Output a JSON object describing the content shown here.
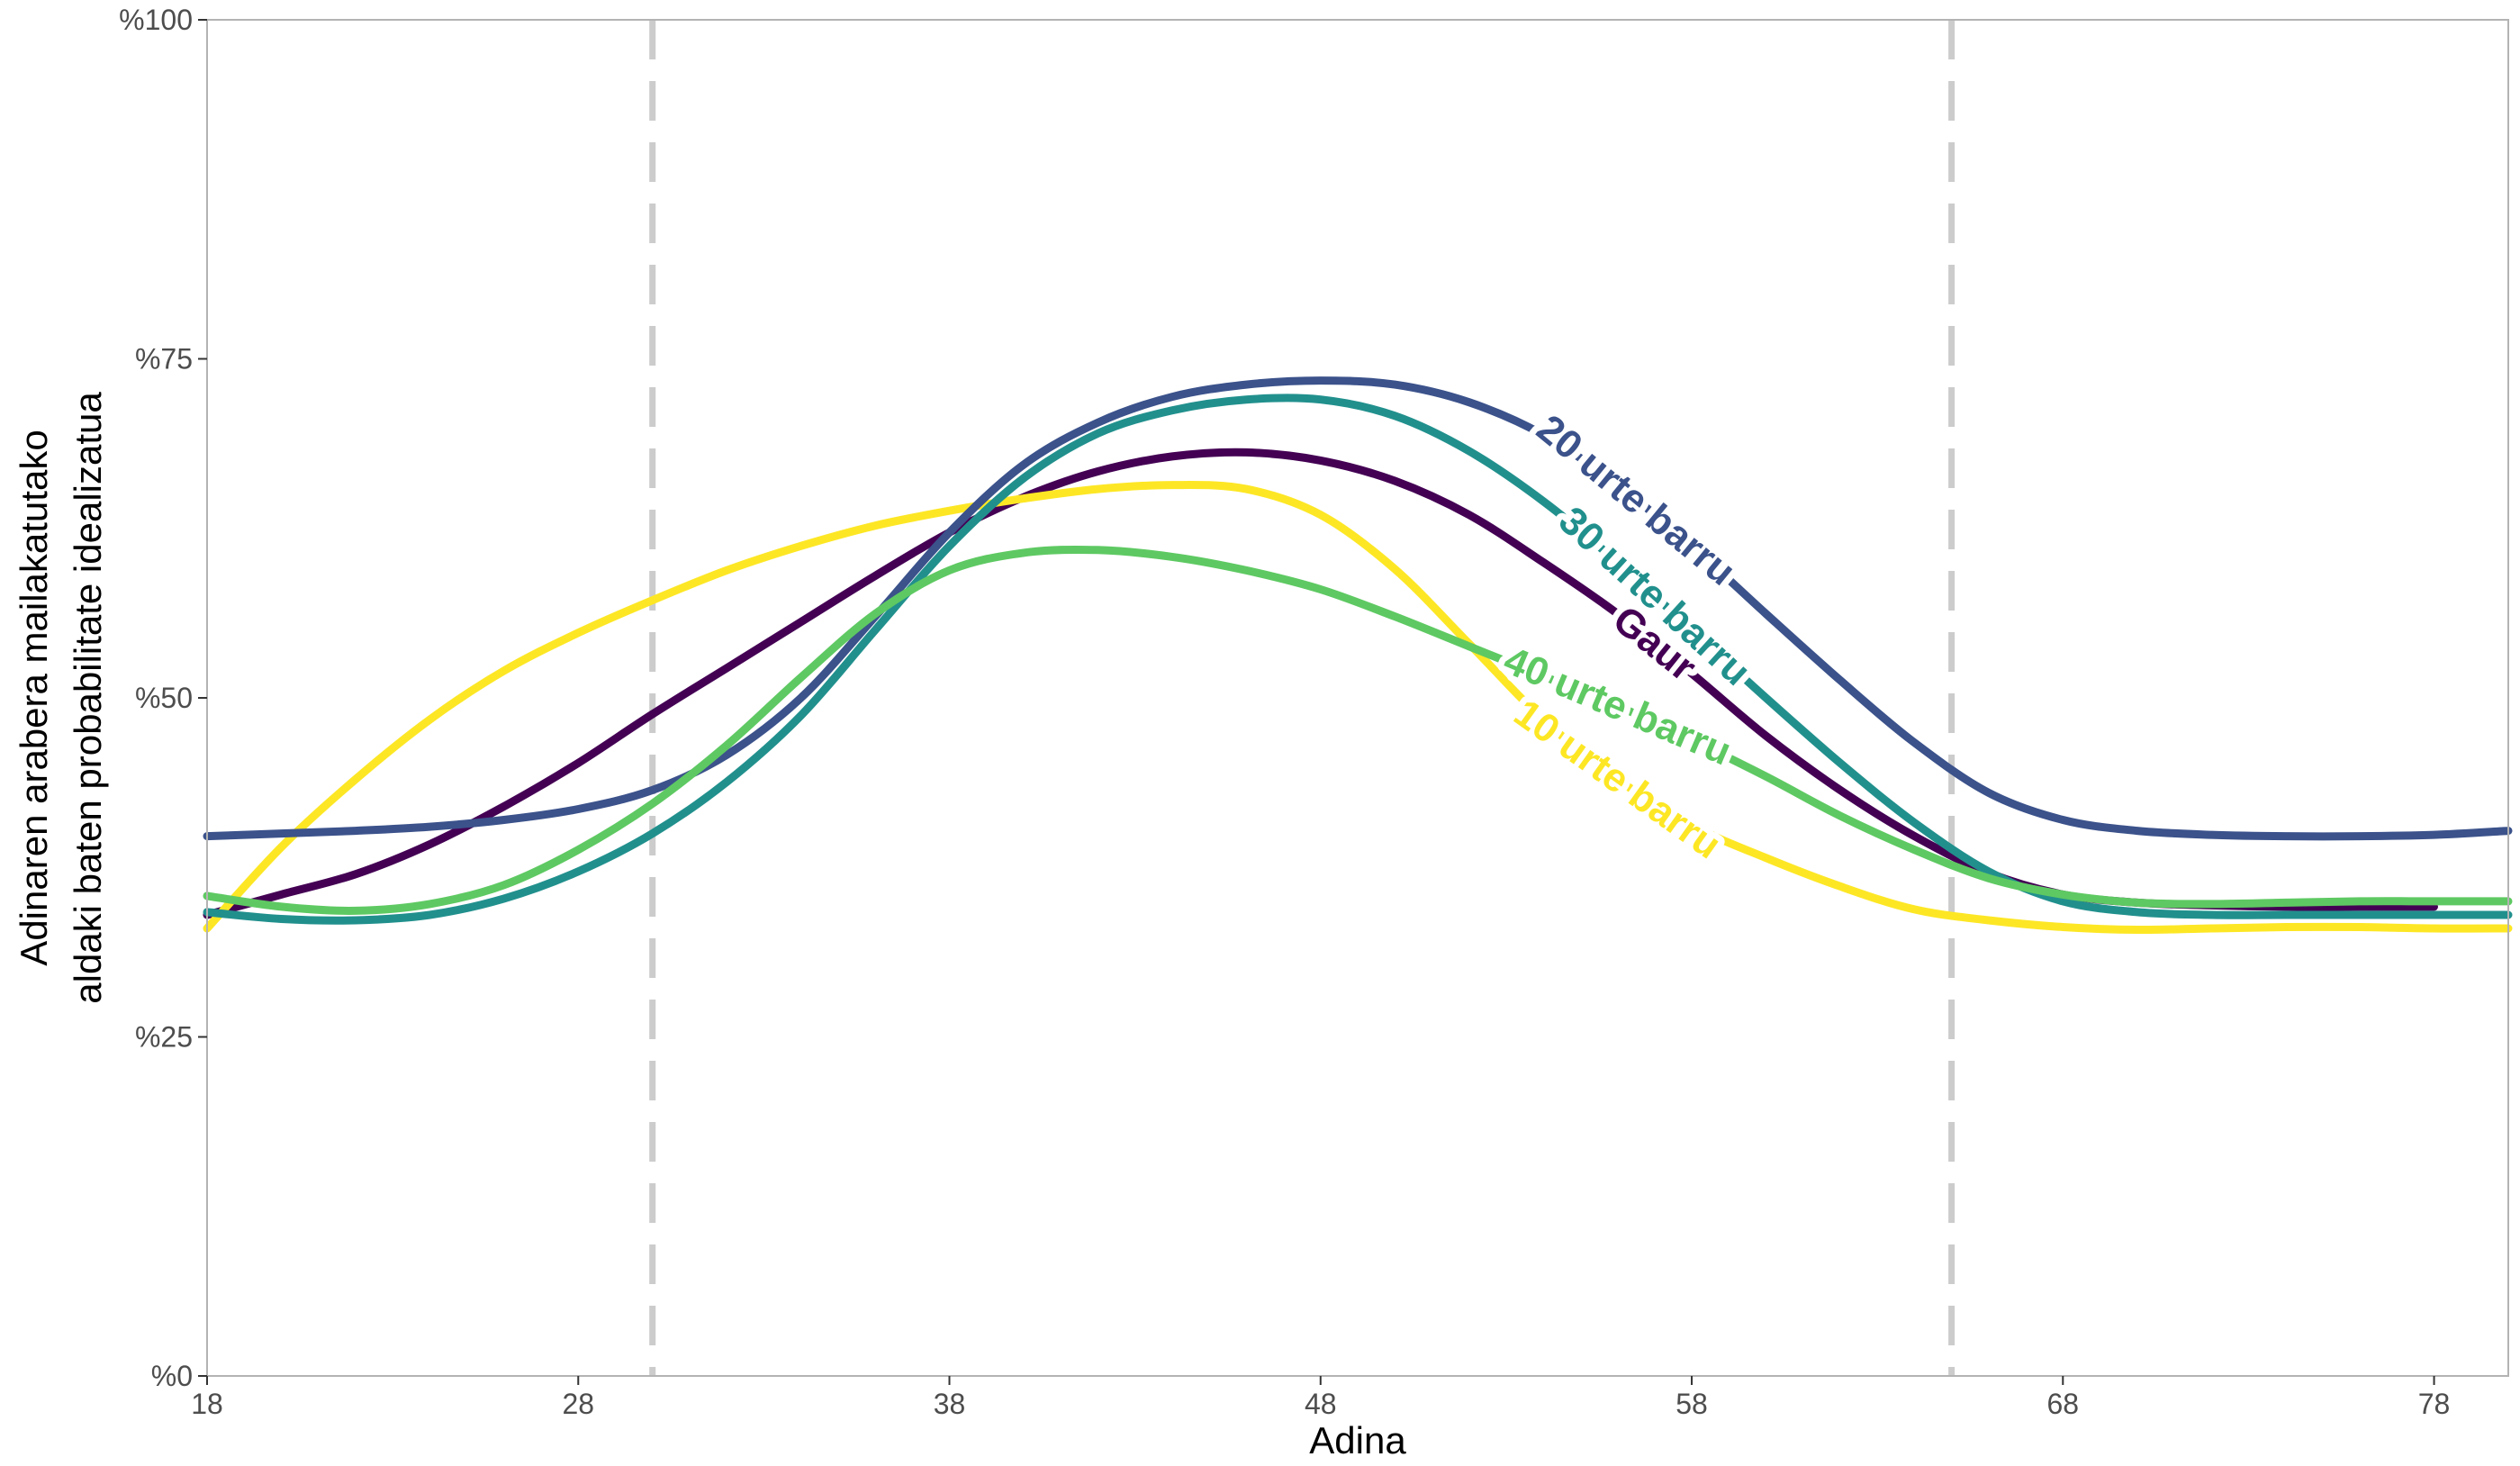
{
  "chart_data": {
    "type": "line",
    "title": "",
    "xlabel": "Adina",
    "ylabel_lines": [
      "Adinaren arabera mailakatutako",
      "aldaki baten probabilitate idealizatua"
    ],
    "xlim": [
      18,
      80
    ],
    "ylim": [
      0,
      1
    ],
    "x_ticks": [
      18,
      28,
      38,
      48,
      58,
      68,
      78
    ],
    "y_ticks": [
      {
        "value": 0,
        "label": "%0"
      },
      {
        "value": 0.25,
        "label": "%25"
      },
      {
        "value": 0.5,
        "label": "%50"
      },
      {
        "value": 0.75,
        "label": "%75"
      },
      {
        "value": 1,
        "label": "%100"
      }
    ],
    "vlines": [
      30,
      65
    ],
    "vline_color": "#cccccc",
    "grid": false,
    "legend": "direct-labels",
    "series": [
      {
        "name": "Gaur",
        "color": "#440154",
        "label_at": 57,
        "x": [
          18,
          20,
          22,
          24,
          26,
          28,
          30,
          32,
          34,
          36,
          38,
          40,
          42,
          44,
          46,
          48,
          50,
          52,
          54,
          56,
          58,
          60,
          62,
          64,
          66,
          68,
          70,
          72,
          74,
          76,
          78
        ],
        "y": [
          0.34,
          0.355,
          0.37,
          0.392,
          0.42,
          0.452,
          0.488,
          0.522,
          0.556,
          0.59,
          0.622,
          0.648,
          0.667,
          0.678,
          0.681,
          0.675,
          0.66,
          0.635,
          0.6,
          0.562,
          0.518,
          0.472,
          0.432,
          0.398,
          0.371,
          0.355,
          0.349,
          0.347,
          0.346,
          0.346,
          0.346
        ]
      },
      {
        "name": "10 urte barru",
        "color": "#fde725",
        "label_at": 56,
        "x": [
          18,
          20,
          22,
          24,
          26,
          28,
          30,
          32,
          34,
          36,
          38,
          40,
          42,
          44,
          46,
          48,
          50,
          52,
          54,
          56,
          58,
          60,
          62,
          64,
          66,
          68,
          70,
          72,
          74,
          76,
          78,
          80
        ],
        "y": [
          0.33,
          0.39,
          0.44,
          0.484,
          0.52,
          0.548,
          0.572,
          0.594,
          0.612,
          0.627,
          0.638,
          0.647,
          0.654,
          0.657,
          0.654,
          0.635,
          0.595,
          0.54,
          0.484,
          0.44,
          0.406,
          0.382,
          0.361,
          0.344,
          0.336,
          0.331,
          0.329,
          0.33,
          0.331,
          0.331,
          0.33,
          0.33
        ]
      },
      {
        "name": "20 urte barru",
        "color": "#3b528b",
        "label_at": 56.5,
        "x": [
          18,
          20,
          22,
          24,
          26,
          28,
          30,
          32,
          34,
          36,
          38,
          40,
          42,
          44,
          46,
          48,
          50,
          52,
          54,
          56,
          58,
          60,
          62,
          64,
          66,
          68,
          70,
          72,
          74,
          76,
          78,
          80
        ],
        "y": [
          0.398,
          0.4,
          0.402,
          0.405,
          0.41,
          0.418,
          0.432,
          0.458,
          0.5,
          0.56,
          0.622,
          0.672,
          0.703,
          0.722,
          0.731,
          0.734,
          0.731,
          0.718,
          0.694,
          0.657,
          0.612,
          0.562,
          0.513,
          0.467,
          0.43,
          0.41,
          0.402,
          0.399,
          0.398,
          0.398,
          0.399,
          0.402
        ]
      },
      {
        "name": "30 urte barru",
        "color": "#21908d",
        "label_at": 57,
        "x": [
          18,
          20,
          22,
          24,
          26,
          28,
          30,
          32,
          34,
          36,
          38,
          40,
          42,
          44,
          46,
          48,
          50,
          52,
          54,
          56,
          58,
          60,
          62,
          64,
          66,
          68,
          70,
          72,
          74,
          76,
          78,
          80
        ],
        "y": [
          0.342,
          0.337,
          0.336,
          0.34,
          0.352,
          0.372,
          0.4,
          0.438,
          0.487,
          0.55,
          0.612,
          0.662,
          0.695,
          0.712,
          0.72,
          0.72,
          0.708,
          0.682,
          0.645,
          0.6,
          0.55,
          0.5,
          0.452,
          0.408,
          0.372,
          0.35,
          0.342,
          0.34,
          0.34,
          0.34,
          0.34,
          0.34
        ]
      },
      {
        "name": "40 urte barru",
        "color": "#5ec962",
        "label_at": 56,
        "x": [
          18,
          20,
          22,
          24,
          26,
          28,
          30,
          32,
          34,
          36,
          38,
          40,
          42,
          44,
          46,
          48,
          50,
          52,
          54,
          56,
          58,
          60,
          62,
          64,
          66,
          68,
          70,
          72,
          74,
          76,
          78,
          80
        ],
        "y": [
          0.354,
          0.346,
          0.343,
          0.348,
          0.362,
          0.388,
          0.422,
          0.465,
          0.515,
          0.562,
          0.594,
          0.607,
          0.609,
          0.604,
          0.594,
          0.58,
          0.56,
          0.538,
          0.516,
          0.494,
          0.469,
          0.442,
          0.413,
          0.388,
          0.367,
          0.355,
          0.349,
          0.348,
          0.349,
          0.35,
          0.35,
          0.35
        ]
      }
    ]
  }
}
